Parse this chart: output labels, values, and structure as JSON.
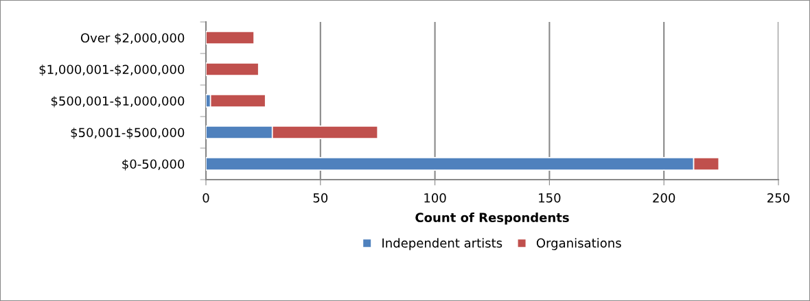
{
  "chart_data": {
    "type": "bar",
    "orientation": "horizontal",
    "stacked": true,
    "xlabel": "Count of Respondents",
    "categories": [
      "Over $2,000,000",
      "$1,000,001-$2,000,000",
      "$500,001-$1,000,000",
      "$50,001-$500,000",
      "$0-50,000"
    ],
    "series": [
      {
        "name": "Independent artists",
        "color": "#4f81bd",
        "values": [
          0,
          0,
          2,
          29,
          213
        ]
      },
      {
        "name": "Organisations",
        "color": "#c0504d",
        "values": [
          21,
          23,
          24,
          46,
          11
        ]
      }
    ],
    "xlim": [
      0,
      250
    ],
    "xticks": [
      0,
      50,
      100,
      150,
      200,
      250
    ],
    "grid": "x",
    "legend": "bottom"
  }
}
